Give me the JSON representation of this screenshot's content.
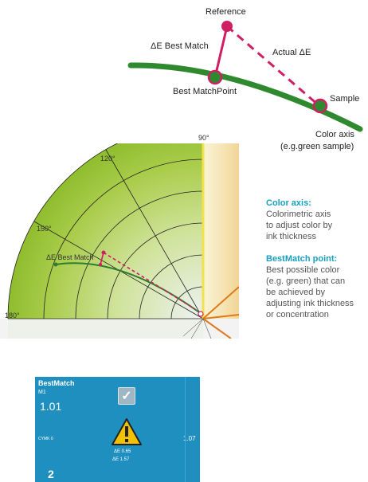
{
  "diagram": {
    "reference_label": "Reference",
    "de_best_match_label": "ΔE Best Match",
    "actual_de_label": "Actual ΔE",
    "best_match_point_label": "Best MatchPoint",
    "sample_label": "Sample",
    "color_axis_label_line1": "Color axis",
    "color_axis_label_line2": "(e.g.green sample)"
  },
  "polar": {
    "angle_labels": [
      "90°",
      "120°",
      "150°",
      "180°"
    ],
    "de_best_match_label": "ΔE Best Match"
  },
  "description": {
    "color_axis_title": "Color axis:",
    "color_axis_lines": [
      "Colorimetric axis",
      "to adjust color by",
      "ink thickness"
    ],
    "bestmatch_title": "BestMatch point:",
    "bestmatch_lines": [
      "Best possible color",
      "(e.g. green) that can",
      "be achieved by",
      "adjusting ink thickness",
      "or concentration"
    ]
  },
  "panel": {
    "title": "BestMatch",
    "sub": "M1",
    "value_main": "1.01",
    "cymk_label": "CYMK 0",
    "value_right": "1.07",
    "de_line1": "ΔE 0.65",
    "de_line2": "ΔE 1.57",
    "bottom_number": "2",
    "colors": {
      "background": "#1f8fc0",
      "warning": "#f2c200"
    }
  },
  "colors": {
    "axis_green": "#2f8a2f",
    "marker_pink": "#d01e64",
    "accent_teal": "#1aa0bf"
  }
}
